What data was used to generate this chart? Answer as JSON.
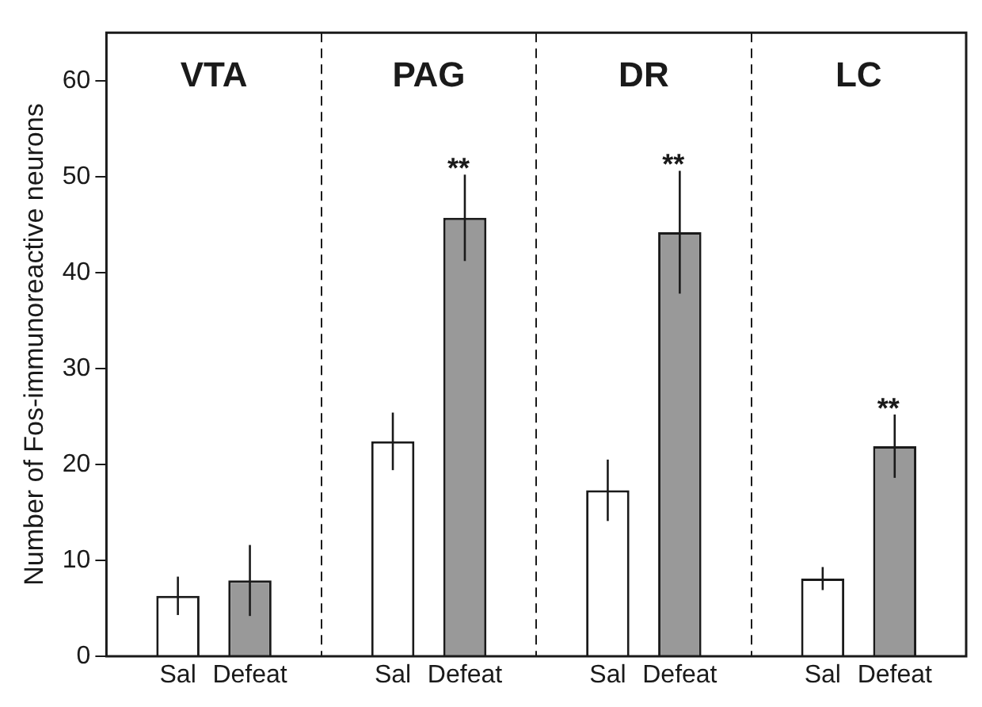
{
  "chart_data": {
    "type": "bar",
    "ylabel": "Number of Fos-immunoreactive neurons",
    "categories": [
      "VTA",
      "PAG",
      "DR",
      "LC"
    ],
    "series": [
      {
        "name": "Sal",
        "color": "#ffffff",
        "values": [
          6.3,
          22.4,
          17.3,
          8.1
        ],
        "errors": [
          2,
          3,
          3.2,
          1.2
        ]
      },
      {
        "name": "Defeat",
        "color": "#999999",
        "values": [
          7.9,
          45.7,
          44.2,
          21.9
        ],
        "errors": [
          3.7,
          4.5,
          6.4,
          3.3
        ],
        "value_labels": [
          null,
          "**",
          "**",
          "**"
        ]
      }
    ],
    "ylim": [
      0,
      65
    ],
    "yticks": [
      0,
      10,
      20,
      30,
      40,
      50,
      60
    ],
    "grid": "x"
  }
}
